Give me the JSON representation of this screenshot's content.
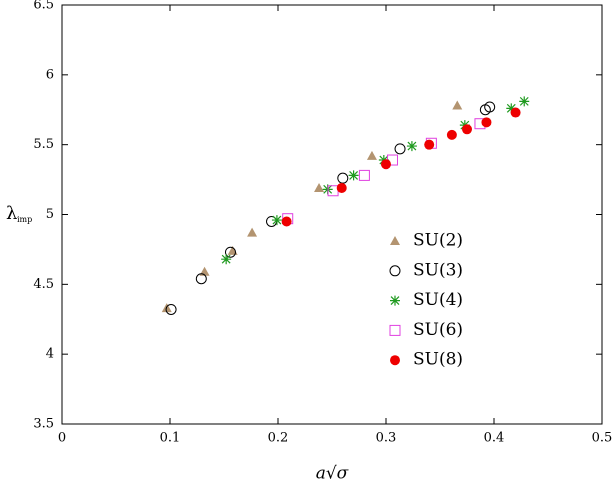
{
  "chart_data": {
    "type": "scatter",
    "xlabel": "a√σ",
    "ylabel": "λ",
    "ylabel_sub": "imp",
    "xlim": [
      0,
      0.5
    ],
    "ylim": [
      3.5,
      6.5
    ],
    "xticks": [
      0,
      0.1,
      0.2,
      0.3,
      0.4,
      0.5
    ],
    "yticks": [
      3.5,
      4,
      4.5,
      5,
      5.5,
      6,
      6.5
    ],
    "series": [
      {
        "name": "SU(2)",
        "color": "#b39470",
        "marker": "triangle",
        "x": [
          0.097,
          0.132,
          0.158,
          0.176,
          0.238,
          0.287,
          0.366
        ],
        "values": [
          4.33,
          4.59,
          4.74,
          4.87,
          5.19,
          5.42,
          5.78
        ]
      },
      {
        "name": "SU(3)",
        "color": "#000000",
        "marker": "open-circle",
        "x": [
          0.101,
          0.129,
          0.156,
          0.194,
          0.26,
          0.313,
          0.392,
          0.396
        ],
        "values": [
          4.32,
          4.54,
          4.73,
          4.95,
          5.26,
          5.47,
          5.75,
          5.77
        ]
      },
      {
        "name": "SU(4)",
        "color": "#1f9a1f",
        "marker": "star",
        "x": [
          0.152,
          0.199,
          0.246,
          0.27,
          0.298,
          0.324,
          0.373,
          0.416,
          0.428
        ],
        "values": [
          4.68,
          4.96,
          5.18,
          5.28,
          5.39,
          5.49,
          5.64,
          5.76,
          5.81
        ]
      },
      {
        "name": "SU(6)",
        "color": "#e040e0",
        "marker": "open-square",
        "x": [
          0.209,
          0.251,
          0.28,
          0.306,
          0.342,
          0.387
        ],
        "values": [
          4.97,
          5.17,
          5.28,
          5.39,
          5.51,
          5.65
        ]
      },
      {
        "name": "SU(8)",
        "color": "#ee0000",
        "marker": "filled-circle",
        "x": [
          0.208,
          0.259,
          0.3,
          0.34,
          0.361,
          0.375,
          0.393,
          0.42
        ],
        "values": [
          4.95,
          5.19,
          5.36,
          5.5,
          5.57,
          5.61,
          5.66,
          5.73
        ]
      }
    ]
  }
}
